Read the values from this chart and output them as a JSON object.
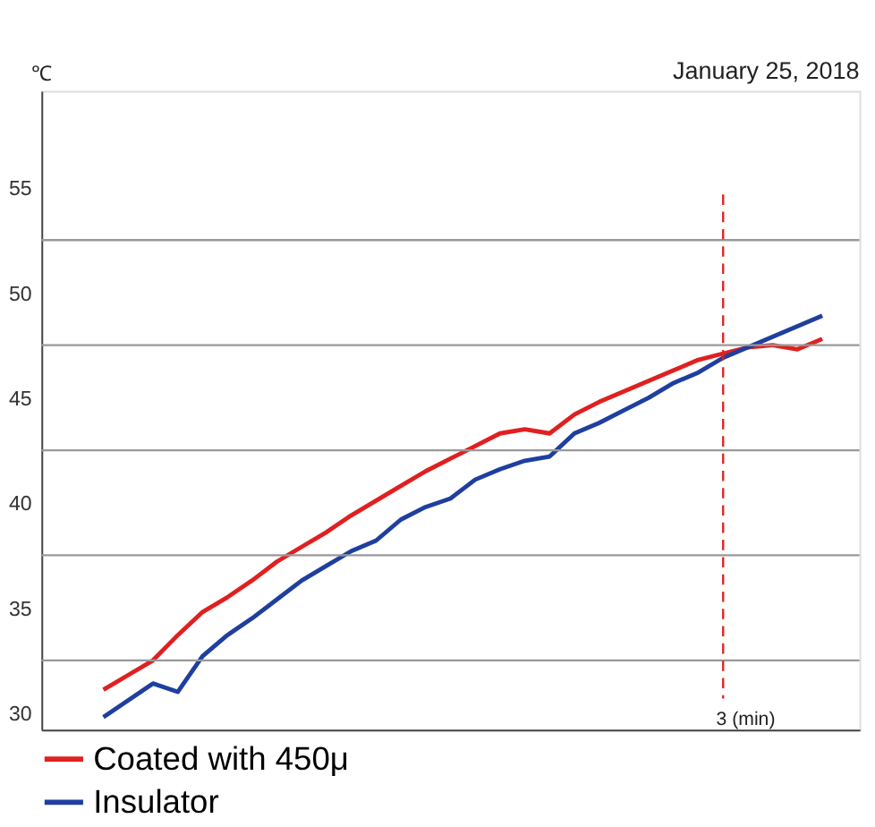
{
  "chart_data": {
    "type": "line",
    "ylabel": "℃",
    "annotations": [
      "January 25, 2018",
      "3 (min)"
    ],
    "categories": [
      null,
      null,
      null,
      null,
      null,
      null,
      null,
      null,
      null,
      null,
      null,
      null,
      null,
      null,
      null,
      null,
      null,
      null,
      null,
      null,
      null,
      null,
      null,
      null,
      null,
      null,
      null,
      null,
      null,
      null
    ],
    "ylim": [
      29.2,
      59.6
    ],
    "yticks": [
      30,
      35,
      40,
      45,
      50,
      55
    ],
    "tick_labels": "y",
    "grid": false,
    "legend": "bottom left",
    "line_style": "solid",
    "marker": "none",
    "ref_lines": [
      {
        "axis": "y",
        "value": 32.5,
        "label": null,
        "color": "#999999",
        "line_style": "solid"
      },
      {
        "axis": "y",
        "value": 37.5,
        "label": null,
        "color": "#999999",
        "line_style": "solid"
      },
      {
        "axis": "y",
        "value": 42.5,
        "label": null,
        "color": "#999999",
        "line_style": "solid"
      },
      {
        "axis": "y",
        "value": 47.5,
        "label": null,
        "color": "#999999",
        "line_style": "solid"
      },
      {
        "axis": "y",
        "value": 52.5,
        "label": null,
        "color": "#999999",
        "line_style": "solid"
      }
    ],
    "series": [
      {
        "name": "Coated with 450μ",
        "color": "#e02020",
        "values": [
          31.1,
          31.8,
          32.5,
          33.7,
          34.8,
          35.5,
          36.3,
          37.2,
          37.9,
          38.6,
          39.4,
          40.1,
          40.8,
          41.5,
          42.1,
          42.7,
          43.3,
          43.5,
          43.3,
          44.2,
          44.8,
          45.3,
          45.8,
          46.3,
          46.8,
          47.1,
          47.4,
          47.5,
          47.3,
          47.8
        ]
      },
      {
        "name": "Insulator",
        "color": "#1f3f9f",
        "values": [
          29.8,
          30.6,
          31.4,
          31.0,
          32.7,
          33.7,
          34.5,
          35.4,
          36.3,
          37.0,
          37.7,
          38.2,
          39.2,
          39.8,
          40.2,
          41.1,
          41.6,
          42.0,
          42.2,
          43.3,
          43.8,
          44.4,
          45.0,
          45.7,
          46.2,
          46.9,
          47.4,
          47.9,
          48.4,
          48.9
        ]
      }
    ]
  }
}
